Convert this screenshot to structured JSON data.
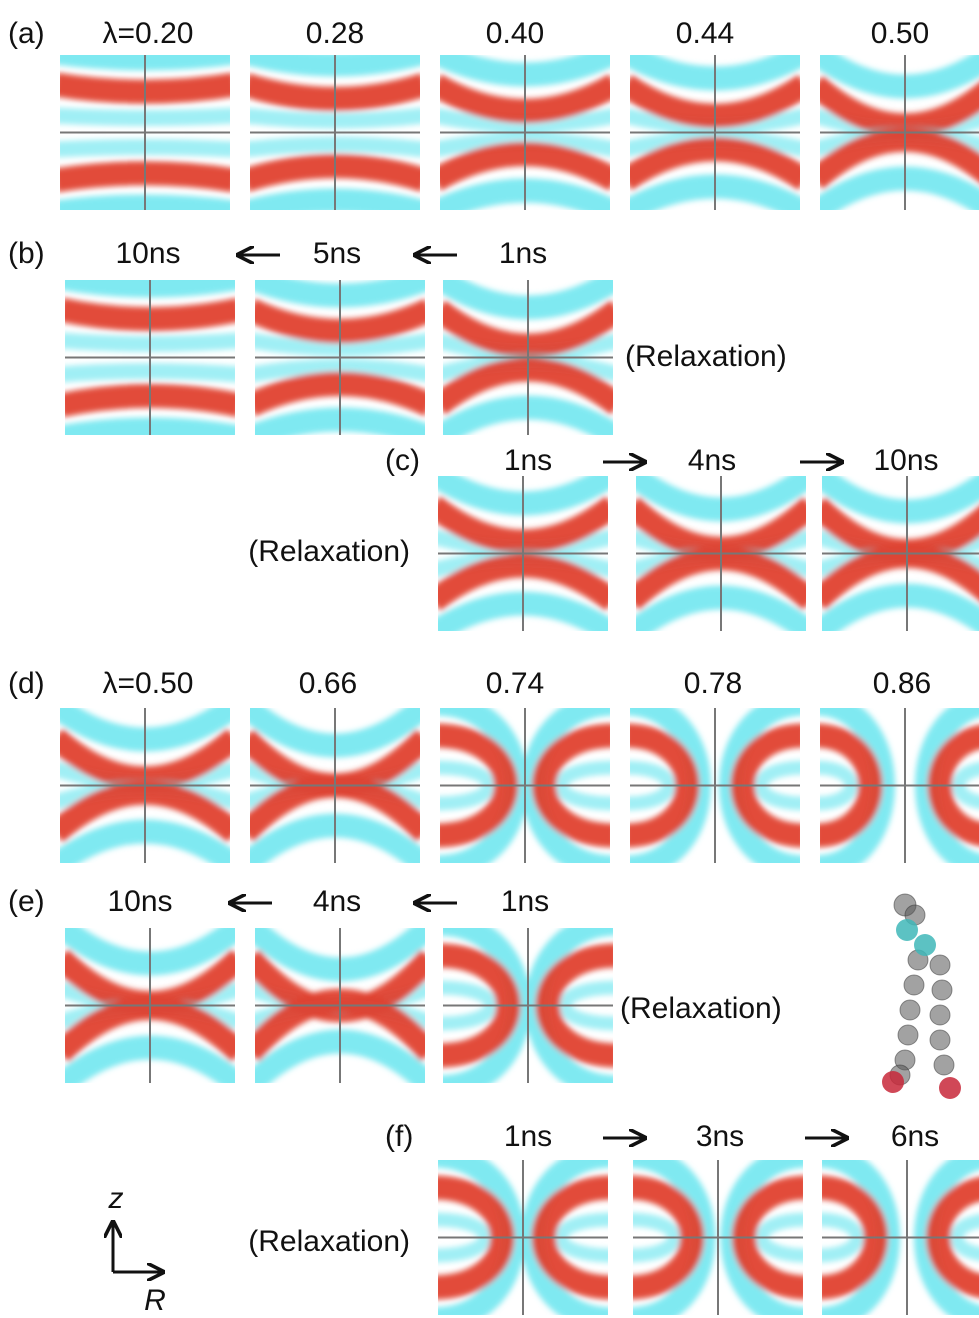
{
  "panels": [
    {
      "label": "(a)",
      "frames": [
        "λ=0.20",
        "0.28",
        "0.40",
        "0.44",
        "0.50"
      ]
    },
    {
      "label": "(b)",
      "frames": [
        "10ns",
        "5ns",
        "1ns"
      ],
      "note": "(Relaxation)"
    },
    {
      "label": "(c)",
      "frames": [
        "1ns",
        "4ns",
        "10ns"
      ],
      "note": "(Relaxation)"
    },
    {
      "label": "(d)",
      "frames": [
        "λ=0.50",
        "0.66",
        "0.74",
        "0.78",
        "0.86"
      ]
    },
    {
      "label": "(e)",
      "frames": [
        "10ns",
        "4ns",
        "1ns"
      ],
      "note": "(Relaxation)"
    },
    {
      "label": "(f)",
      "frames": [
        "1ns",
        "3ns",
        "6ns"
      ],
      "note": "(Relaxation)"
    }
  ],
  "axes": {
    "vertical": "z",
    "horizontal": "R"
  }
}
